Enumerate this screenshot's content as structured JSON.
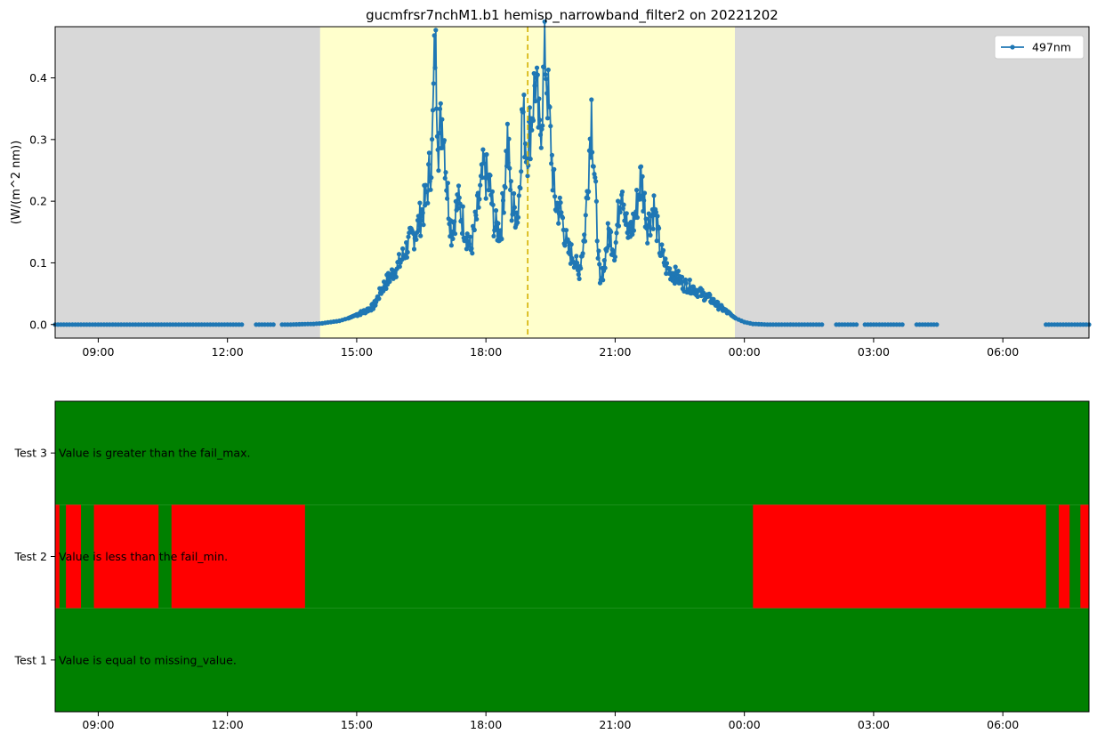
{
  "chart_data": [
    {
      "type": "line",
      "title": "gucmfrsr7nchM1.b1 hemisp_narrowband_filter2 on 20221202",
      "xlabel": "",
      "ylabel": "(W/(m^2 nm))",
      "x_unit": "hour of day, continuing past midnight (24 = 00:00 next day)",
      "xlim": [
        8.0,
        32.0
      ],
      "ylim": [
        -0.022,
        0.483
      ],
      "x_tick_labels": [
        "09:00",
        "12:00",
        "15:00",
        "18:00",
        "21:00",
        "00:00",
        "03:00",
        "06:00"
      ],
      "x_tick_values": [
        9,
        12,
        15,
        18,
        21,
        24,
        27,
        30
      ],
      "y_tick_values": [
        0.0,
        0.1,
        0.2,
        0.3,
        0.4
      ],
      "y_tick_labels": [
        "0.0",
        "0.1",
        "0.2",
        "0.3",
        "0.4"
      ],
      "legend": {
        "location": "top-right",
        "entries": [
          "497nm"
        ]
      },
      "night_color": "#d8d8d8",
      "day_color": "#ffffcc",
      "day_span": [
        14.15,
        23.78
      ],
      "solar_noon_marker": {
        "x": 18.97,
        "color": "#d4b000",
        "style": "dashed"
      },
      "series": [
        {
          "name": "497nm",
          "color": "#1f77b4",
          "marker": "dot",
          "x": [
            8.0,
            8.5,
            9.0,
            9.5,
            10.0,
            10.5,
            11.0,
            11.5,
            12.0,
            12.5,
            13.0,
            13.5,
            14.0,
            14.2,
            14.4,
            14.6,
            14.8,
            15.0,
            15.2,
            15.4,
            15.6,
            15.8,
            16.0,
            16.2,
            16.4,
            16.6,
            16.75,
            16.82,
            16.9,
            17.0,
            17.1,
            17.2,
            17.35,
            17.5,
            17.65,
            17.8,
            17.95,
            18.1,
            18.2,
            18.35,
            18.5,
            18.6,
            18.75,
            18.85,
            18.95,
            19.05,
            19.15,
            19.25,
            19.38,
            19.5,
            19.6,
            19.75,
            19.9,
            20.05,
            20.15,
            20.3,
            20.45,
            20.55,
            20.65,
            20.75,
            20.85,
            21.0,
            21.15,
            21.3,
            21.45,
            21.6,
            21.75,
            21.9,
            22.05,
            22.2,
            22.4,
            22.6,
            22.8,
            23.0,
            23.2,
            23.4,
            23.6,
            23.8,
            24.0,
            24.2,
            24.5,
            25.0,
            25.5,
            26.0,
            26.5,
            27.0,
            27.5,
            28.0,
            28.5,
            29.0,
            29.5,
            30.0,
            30.5,
            31.0,
            31.5,
            32.0
          ],
          "y": [
            0.0,
            0.0,
            0.0,
            0.0,
            0.0,
            0.0,
            0.0,
            0.0,
            0.0,
            0.0,
            0.0,
            0.0,
            0.001,
            0.002,
            0.004,
            0.006,
            0.01,
            0.016,
            0.022,
            0.03,
            0.06,
            0.08,
            0.1,
            0.13,
            0.155,
            0.2,
            0.28,
            0.46,
            0.3,
            0.34,
            0.22,
            0.15,
            0.2,
            0.16,
            0.12,
            0.18,
            0.25,
            0.22,
            0.16,
            0.15,
            0.3,
            0.19,
            0.18,
            0.35,
            0.28,
            0.33,
            0.4,
            0.3,
            0.44,
            0.3,
            0.2,
            0.18,
            0.12,
            0.11,
            0.08,
            0.15,
            0.35,
            0.2,
            0.06,
            0.1,
            0.15,
            0.12,
            0.24,
            0.14,
            0.17,
            0.24,
            0.16,
            0.19,
            0.12,
            0.09,
            0.08,
            0.065,
            0.06,
            0.05,
            0.042,
            0.03,
            0.02,
            0.01,
            0.004,
            0.001,
            0.0,
            0.0,
            0.0,
            0.0,
            0.0,
            0.0,
            0.0,
            0.0,
            0.0,
            0.0,
            0.0,
            0.0,
            0.0,
            0.0,
            0.0,
            0.0
          ]
        }
      ]
    },
    {
      "type": "heatmap",
      "xlabel": "",
      "ylabel": "",
      "x_unit": "hour of day, continuing past midnight (24 = 00:00 next day)",
      "xlim": [
        8.0,
        32.0
      ],
      "x_tick_labels": [
        "09:00",
        "12:00",
        "15:00",
        "18:00",
        "21:00",
        "00:00",
        "03:00",
        "06:00"
      ],
      "x_tick_values": [
        9,
        12,
        15,
        18,
        21,
        24,
        27,
        30
      ],
      "pass_color": "#008000",
      "fail_color": "#ff0000",
      "tests": [
        {
          "label": "Test 3",
          "description": "Value is greater than the fail_max.",
          "fail_intervals": []
        },
        {
          "label": "Test 2",
          "description": "Value is less than the fail_min.",
          "fail_intervals": [
            [
              8.0,
              8.1
            ],
            [
              8.25,
              8.6
            ],
            [
              8.9,
              10.4
            ],
            [
              10.7,
              13.8
            ],
            [
              24.2,
              31.0
            ],
            [
              31.3,
              31.55
            ],
            [
              31.8,
              32.0
            ]
          ]
        },
        {
          "label": "Test 1",
          "description": "Value is equal to missing_value.",
          "fail_intervals": []
        }
      ]
    }
  ]
}
